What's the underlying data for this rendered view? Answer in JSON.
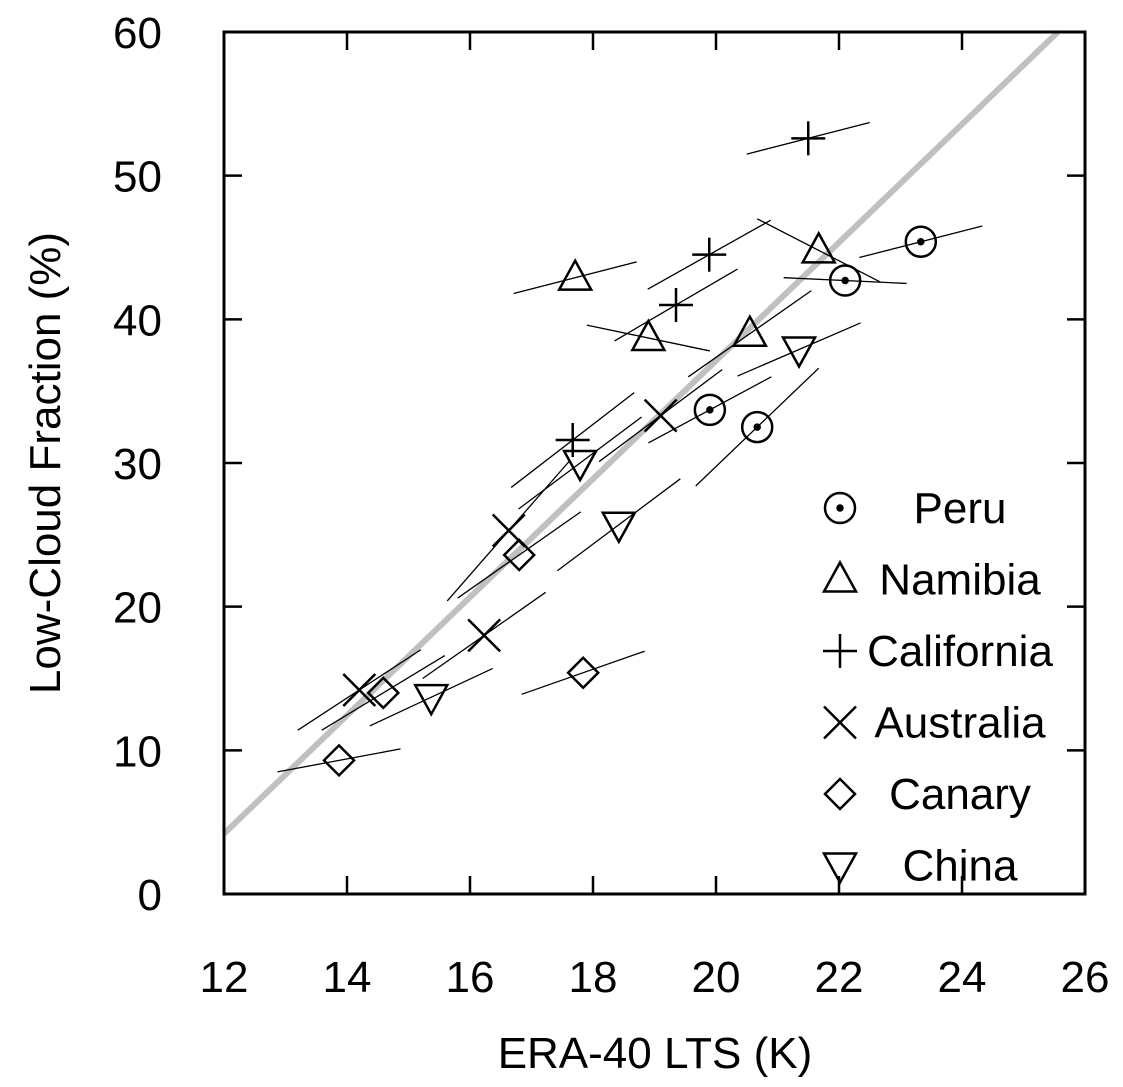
{
  "chart_data": {
    "type": "scatter",
    "xlabel": "ERA-40 LTS (K)",
    "ylabel": "Low-Cloud Fraction (%)",
    "xlim": [
      12,
      26
    ],
    "ylim": [
      0,
      60
    ],
    "xticks": [
      12,
      14,
      16,
      18,
      20,
      22,
      24,
      26
    ],
    "yticks": [
      0,
      10,
      20,
      30,
      40,
      50,
      60
    ],
    "legend": "lower right",
    "fit_line": {
      "x": [
        12,
        25.56
      ],
      "y": [
        4.2,
        60
      ],
      "color": "#c0c0c0"
    },
    "series": [
      {
        "name": "Peru",
        "marker": "circle-dot",
        "color": "#000000",
        "x": [
          19.9,
          20.67,
          22.1,
          23.33
        ],
        "values": [
          33.7,
          32.5,
          42.7,
          45.4
        ],
        "slopes": [
          2.3,
          4.1,
          -0.2,
          1.1
        ]
      },
      {
        "name": "Namibia",
        "marker": "triangle-up",
        "color": "#000000",
        "x": [
          17.71,
          18.9,
          20.55,
          21.67
        ],
        "values": [
          42.9,
          38.7,
          39.0,
          44.8
        ],
        "slopes": [
          1.1,
          -0.9,
          3.0,
          -2.2
        ]
      },
      {
        "name": "California",
        "marker": "plus",
        "color": "#000000",
        "x": [
          21.5,
          19.89,
          19.35,
          17.67
        ],
        "values": [
          52.6,
          44.5,
          41.0,
          31.6
        ],
        "slopes": [
          1.1,
          2.4,
          2.5,
          3.3
        ]
      },
      {
        "name": "Australia",
        "marker": "cross",
        "color": "#000000",
        "x": [
          19.1,
          16.63,
          16.23,
          14.2
        ],
        "values": [
          33.3,
          25.3,
          18.0,
          14.2
        ],
        "slopes": [
          3.2,
          4.9,
          3.0,
          2.8
        ]
      },
      {
        "name": "Canary",
        "marker": "diamond",
        "color": "#000000",
        "x": [
          16.8,
          17.84,
          14.59,
          13.87
        ],
        "values": [
          23.6,
          15.4,
          14.0,
          9.3
        ],
        "slopes": [
          3.0,
          1.5,
          2.6,
          0.8
        ]
      },
      {
        "name": "China",
        "marker": "triangle-down",
        "color": "#000000",
        "x": [
          17.79,
          18.42,
          21.35,
          15.37
        ],
        "values": [
          30.0,
          25.7,
          37.9,
          13.7
        ],
        "slopes": [
          3.2,
          3.2,
          1.85,
          2.0
        ]
      }
    ]
  }
}
